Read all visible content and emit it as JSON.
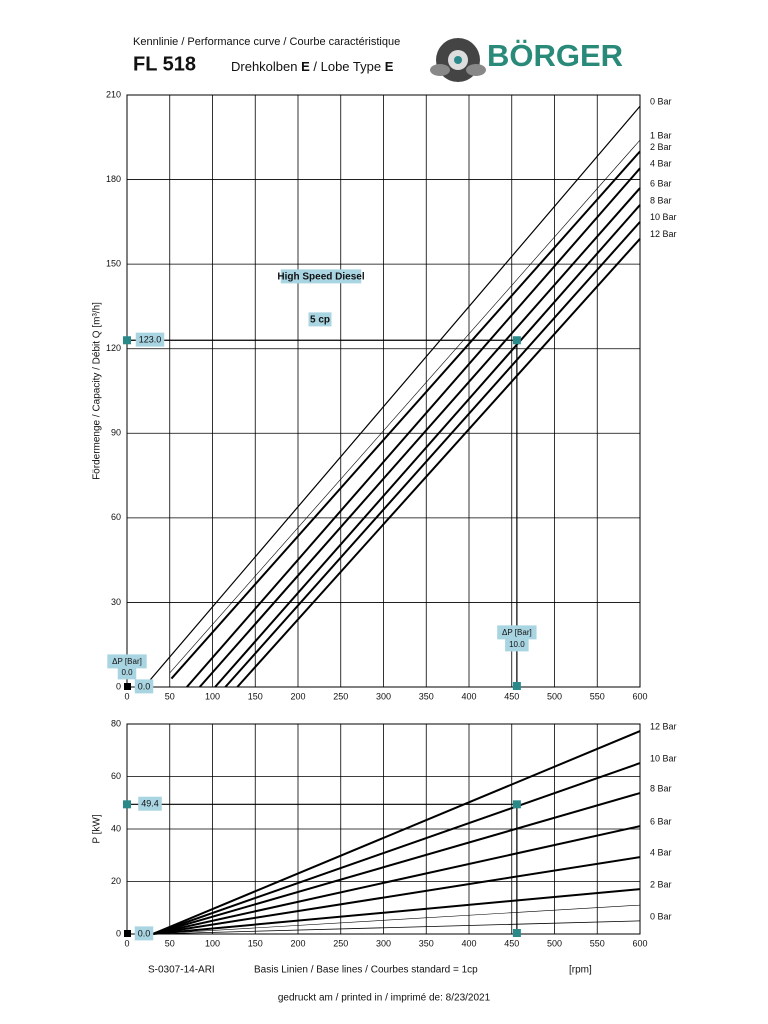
{
  "header": {
    "subtitle": "Kennlinie / Performance curve / Courbe caractéristique",
    "model": "FL 518",
    "type_de": "Drehkolben ",
    "type_de_bold": "E",
    "type_en": " / Lobe Type ",
    "type_en_bold": "E",
    "logo": "BÖRGER"
  },
  "chart_data": [
    {
      "type": "line",
      "ylabel": "Fördermenge / Capacity / Débit   Q [m³/h]",
      "xlim": [
        0,
        600
      ],
      "xticks": [
        0,
        50,
        100,
        150,
        200,
        250,
        300,
        350,
        400,
        450,
        500,
        550,
        600
      ],
      "ylim": [
        0,
        210
      ],
      "yticks": [
        0,
        30,
        60,
        90,
        120,
        150,
        180,
        210
      ],
      "grid": true,
      "annotations": [
        "High Speed Diesel",
        "5 cp"
      ],
      "operating_point": {
        "x": 456,
        "y": 123,
        "y_label": "123.0",
        "dp_title": "ΔP [Bar]",
        "dp_label": "10.0",
        "origin_dp_label": "0.0",
        "origin_label": "0.0"
      },
      "series": [
        {
          "name": "0 Bar",
          "color": "#000000",
          "line_width": 1.2,
          "x": [
            20,
            600
          ],
          "values": [
            0,
            206
          ]
        },
        {
          "name": "1 Bar",
          "color": "#000000",
          "line_width": 0.6,
          "x": [
            50,
            600
          ],
          "values": [
            5,
            194
          ]
        },
        {
          "name": "2 Bar",
          "color": "#000000",
          "line_width": 2,
          "x": [
            52,
            600
          ],
          "values": [
            3,
            190
          ]
        },
        {
          "name": "4 Bar",
          "color": "#000000",
          "line_width": 2,
          "x": [
            70,
            600
          ],
          "values": [
            0,
            184
          ]
        },
        {
          "name": "6 Bar",
          "color": "#000000",
          "line_width": 2,
          "x": [
            85,
            600
          ],
          "values": [
            0,
            177
          ]
        },
        {
          "name": "8 Bar",
          "color": "#000000",
          "line_width": 2,
          "x": [
            103,
            600
          ],
          "values": [
            0,
            171
          ]
        },
        {
          "name": "10 Bar",
          "color": "#000000",
          "line_width": 2,
          "x": [
            115,
            600
          ],
          "values": [
            0,
            165
          ]
        },
        {
          "name": "12 Bar",
          "color": "#000000",
          "line_width": 2,
          "x": [
            129,
            600
          ],
          "values": [
            0,
            159
          ]
        }
      ]
    },
    {
      "type": "line",
      "ylabel": "P [kW]",
      "xlim": [
        0,
        600
      ],
      "xticks": [
        0,
        50,
        100,
        150,
        200,
        250,
        300,
        350,
        400,
        450,
        500,
        550,
        600
      ],
      "ylim": [
        0,
        80
      ],
      "yticks": [
        0,
        20,
        40,
        60,
        80
      ],
      "grid": true,
      "operating_point": {
        "x": 456,
        "y": 49.4,
        "y_label": "49.4",
        "origin_label": "0.0"
      },
      "series": [
        {
          "name": "12 Bar",
          "color": "#000000",
          "line_width": 2,
          "x": [
            30,
            600
          ],
          "values": [
            0,
            77.3
          ]
        },
        {
          "name": "10 Bar",
          "color": "#000000",
          "line_width": 2,
          "x": [
            30,
            600
          ],
          "values": [
            0,
            65.1
          ]
        },
        {
          "name": "8 Bar",
          "color": "#000000",
          "line_width": 2,
          "x": [
            30,
            600
          ],
          "values": [
            0,
            53.7
          ]
        },
        {
          "name": "6 Bar",
          "color": "#000000",
          "line_width": 2,
          "x": [
            30,
            600
          ],
          "values": [
            0,
            41.1
          ]
        },
        {
          "name": "4 Bar",
          "color": "#000000",
          "line_width": 2,
          "x": [
            30,
            600
          ],
          "values": [
            0,
            29.3
          ]
        },
        {
          "name": "2 Bar",
          "color": "#000000",
          "line_width": 2,
          "x": [
            30,
            600
          ],
          "values": [
            0,
            17.1
          ]
        },
        {
          "name": null,
          "color": "#000000",
          "line_width": 0.6,
          "x": [
            30,
            600
          ],
          "values": [
            0,
            11
          ]
        },
        {
          "name": "0 Bar",
          "color": "#000000",
          "line_width": 0.8,
          "x": [
            30,
            600
          ],
          "values": [
            0,
            5
          ]
        }
      ]
    }
  ],
  "footer": {
    "code": "S-0307-14-ARI",
    "base_lines": "Basis Linien / Base lines / Courbes standard = 1cp",
    "unit": "[rpm]",
    "printed": "gedruckt am / printed in / imprimé de: 8/23/2021"
  }
}
